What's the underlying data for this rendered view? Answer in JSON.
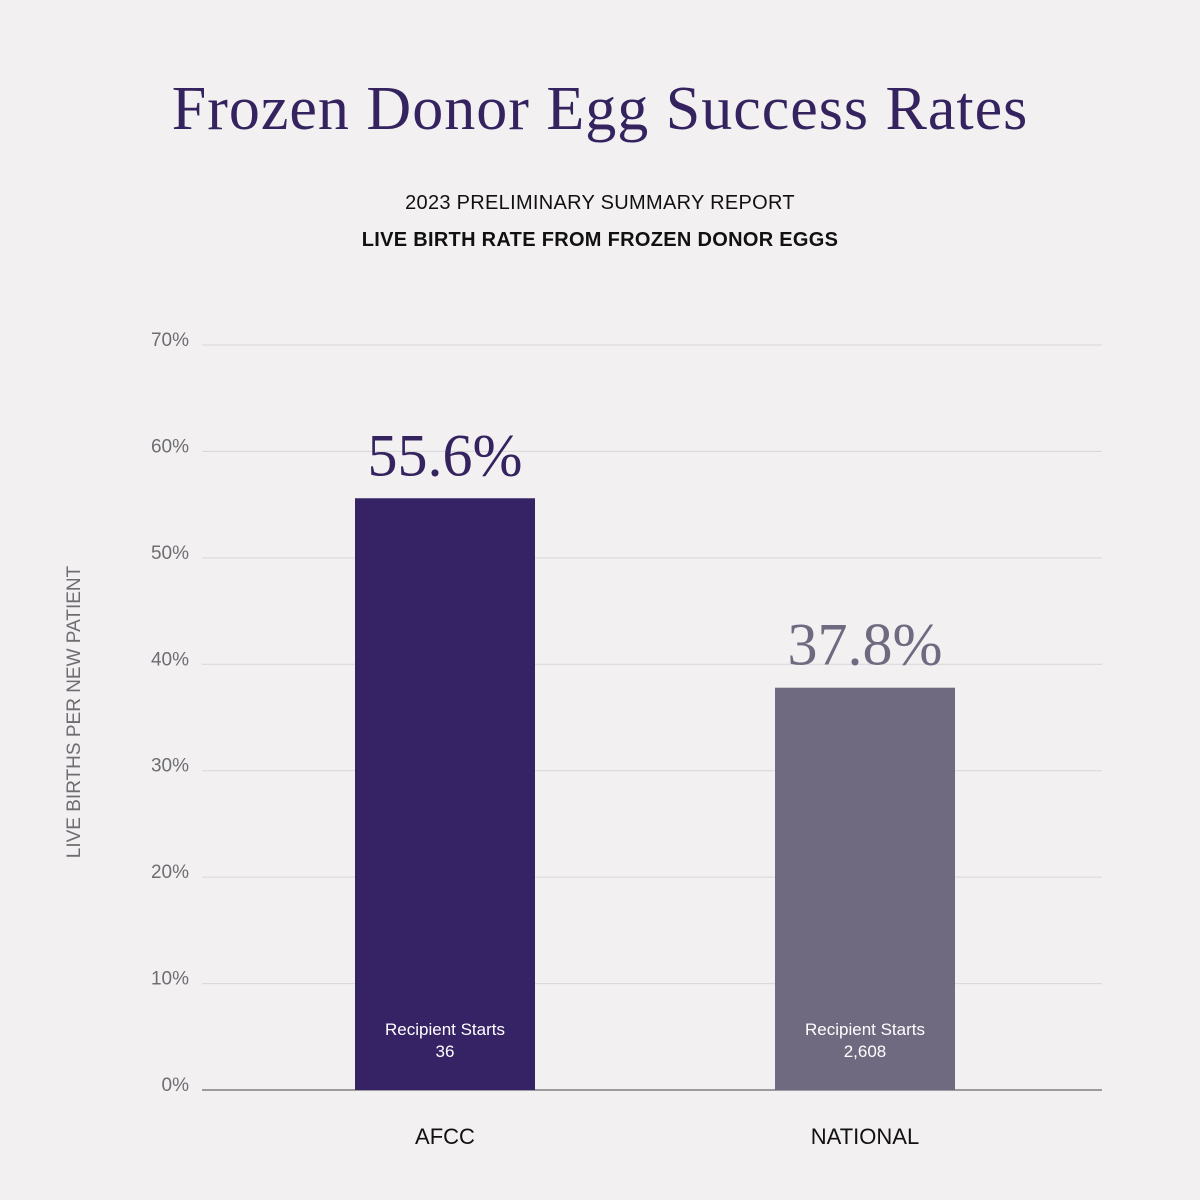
{
  "title": "Frozen Donor Egg Success Rates",
  "subtitle_1": "2023 PRELIMINARY SUMMARY REPORT",
  "subtitle_2": "LIVE BIRTH RATE FROM FROZEN DONOR EGGS",
  "colors": {
    "background": "#f2f0f1",
    "title": "#34235f",
    "afcc_bar": "#352365",
    "national_bar": "#6f6a80",
    "gridline": "#d8d6d8",
    "axis_text": "#6e6e72"
  },
  "chart_data": {
    "type": "bar",
    "title": "Frozen Donor Egg Success Rates",
    "subtitle": "LIVE BIRTH RATE FROM FROZEN DONOR EGGS",
    "xlabel": "",
    "ylabel": "LIVE BIRTHS PER NEW PATIENT",
    "categories": [
      "AFCC",
      "NATIONAL"
    ],
    "values": [
      55.6,
      37.8
    ],
    "value_labels": [
      "55.6%",
      "37.8%"
    ],
    "ylim": [
      0,
      70
    ],
    "yticks": [
      0,
      10,
      20,
      30,
      40,
      50,
      60,
      70
    ],
    "ytick_labels": [
      "0%",
      "10%",
      "20%",
      "30%",
      "40%",
      "50%",
      "60%",
      "70%"
    ],
    "grid": true,
    "bar_colors": [
      "#352365",
      "#6f6a80"
    ],
    "value_label_colors": [
      "#34235f",
      "#6f6a80"
    ],
    "annotations": [
      {
        "category": "AFCC",
        "label": "Recipient Starts",
        "value": "36"
      },
      {
        "category": "NATIONAL",
        "label": "Recipient Starts",
        "value": "2,608"
      }
    ]
  }
}
